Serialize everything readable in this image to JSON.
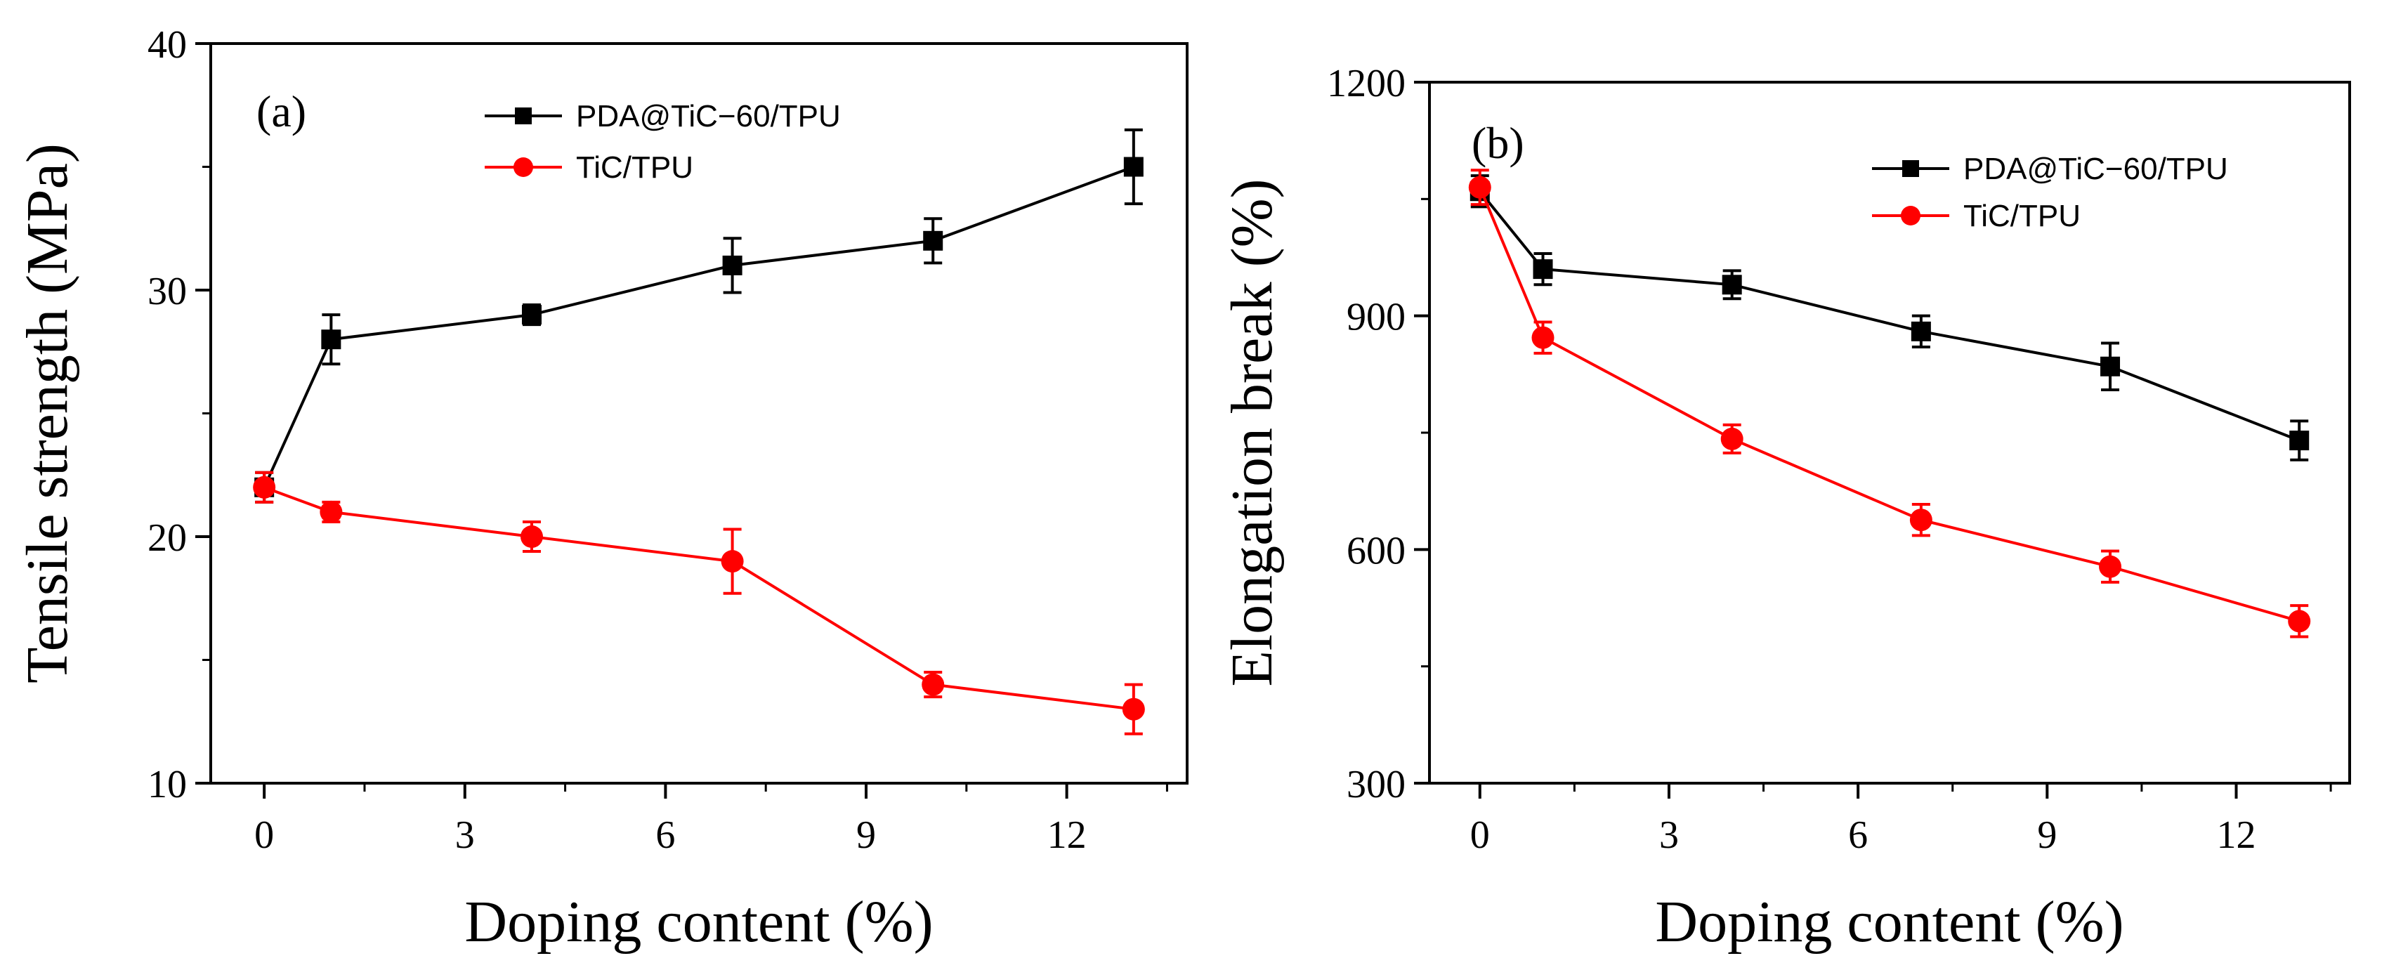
{
  "chart_data": [
    {
      "type": "line",
      "panel_label": "(a)",
      "xlabel": "Doping content (%)",
      "ylabel": "Tensile strength (MPa)",
      "xlim": [
        -0.8,
        13.8
      ],
      "ylim": [
        10,
        40
      ],
      "xticks": [
        0,
        3,
        6,
        9,
        12
      ],
      "yticks": [
        10,
        20,
        30,
        40
      ],
      "legend_position": "top-right",
      "x": [
        0,
        1,
        4,
        7,
        10,
        13
      ],
      "series": [
        {
          "name": "PDA@TiC−60/TPU",
          "color": "#000000",
          "marker": "square",
          "values": [
            22,
            28,
            29,
            31,
            32,
            35
          ],
          "errors": [
            0.6,
            1.0,
            0.4,
            1.1,
            0.9,
            1.5
          ]
        },
        {
          "name": "TiC/TPU",
          "color": "#ff0000",
          "marker": "circle",
          "values": [
            22,
            21,
            20,
            19,
            14,
            13
          ],
          "errors": [
            0.6,
            0.4,
            0.6,
            1.3,
            0.5,
            1.0
          ]
        }
      ]
    },
    {
      "type": "line",
      "panel_label": "(b)",
      "xlabel": "Doping content (%)",
      "ylabel": "Elongation break (%)",
      "xlim": [
        -0.8,
        13.8
      ],
      "ylim": [
        300,
        1200
      ],
      "xticks": [
        0,
        3,
        6,
        9,
        12
      ],
      "yticks": [
        300,
        600,
        900,
        1200
      ],
      "legend_position": "top-right",
      "x": [
        0,
        1,
        4,
        7,
        10,
        13
      ],
      "series": [
        {
          "name": "PDA@TiC−60/TPU",
          "color": "#000000",
          "marker": "square",
          "values": [
            1060,
            960,
            940,
            880,
            835,
            740
          ],
          "errors": [
            20,
            20,
            18,
            20,
            30,
            25
          ]
        },
        {
          "name": "TiC/TPU",
          "color": "#ff0000",
          "marker": "circle",
          "values": [
            1065,
            872,
            742,
            638,
            578,
            508
          ],
          "errors": [
            22,
            20,
            18,
            20,
            20,
            20
          ]
        }
      ]
    }
  ]
}
